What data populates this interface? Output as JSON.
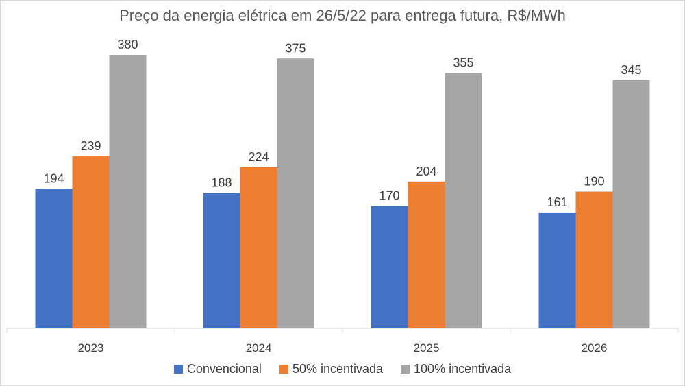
{
  "chart_data": {
    "type": "bar",
    "title": "Preço da energia elétrica em 26/5/22 para entrega futura, R$/MWh",
    "categories": [
      "2023",
      "2024",
      "2025",
      "2026"
    ],
    "series": [
      {
        "name": "Convencional",
        "values": [
          194,
          188,
          170,
          161
        ],
        "color": "#4472C4"
      },
      {
        "name": "50% incentivada",
        "values": [
          239,
          224,
          204,
          190
        ],
        "color": "#ED7D31"
      },
      {
        "name": "100% incentivada",
        "values": [
          380,
          375,
          355,
          345
        ],
        "color": "#A5A5A5"
      }
    ],
    "ylim": [
      0,
      380
    ],
    "grid": false,
    "legend_position": "bottom",
    "data_labels": true
  }
}
